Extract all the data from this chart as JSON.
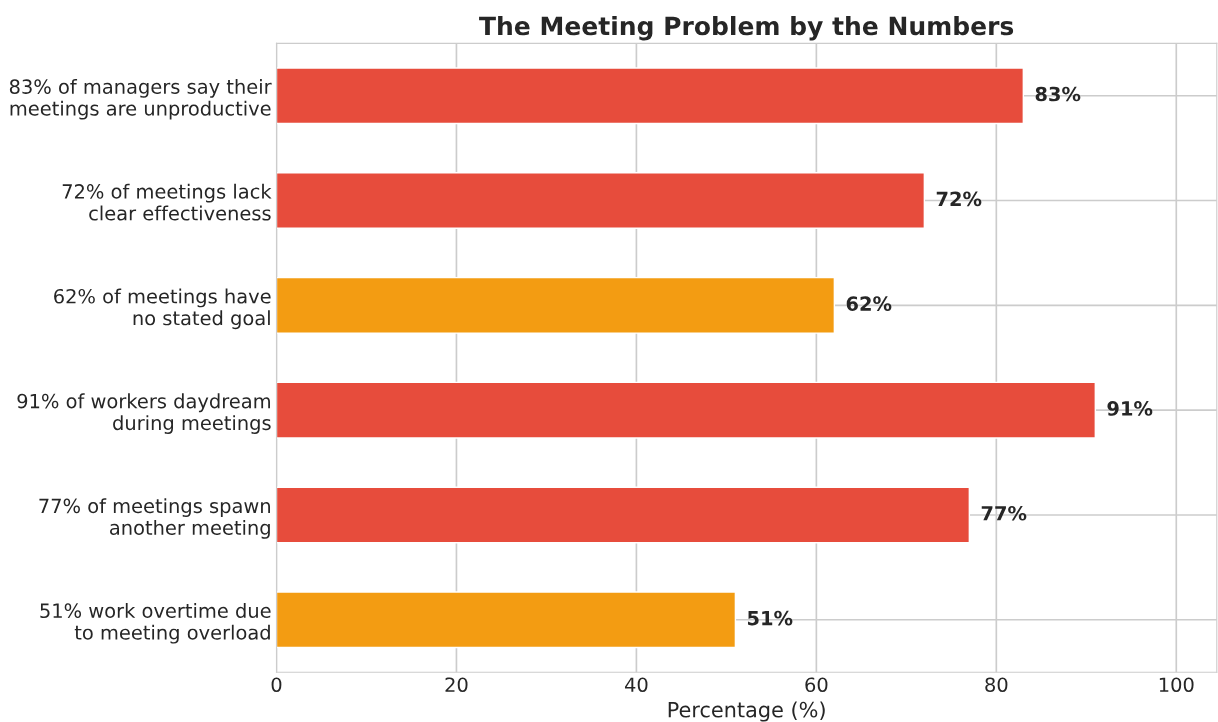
{
  "chart_data": {
    "type": "bar",
    "orientation": "horizontal",
    "title": "The Meeting Problem by the Numbers",
    "xlabel": "Percentage (%)",
    "categories": [
      "83% of managers say their\nmeetings are unproductive",
      "72% of meetings lack\nclear effectiveness",
      "62% of meetings have\nno stated goal",
      "91% of workers daydream\nduring meetings",
      "77% of meetings spawn\nanother meeting",
      "51% work overtime due\nto meeting overload"
    ],
    "values": [
      83,
      72,
      62,
      91,
      77,
      51
    ],
    "colors": [
      "#e74c3c",
      "#e74c3c",
      "#f39c12",
      "#e74c3c",
      "#e74c3c",
      "#f39c12"
    ],
    "value_labels": [
      "83%",
      "72%",
      "62%",
      "91%",
      "77%",
      "51%"
    ],
    "xlim": [
      0,
      104.5
    ],
    "xticks": [
      0,
      20,
      40,
      60,
      80,
      100
    ],
    "grid": true
  }
}
